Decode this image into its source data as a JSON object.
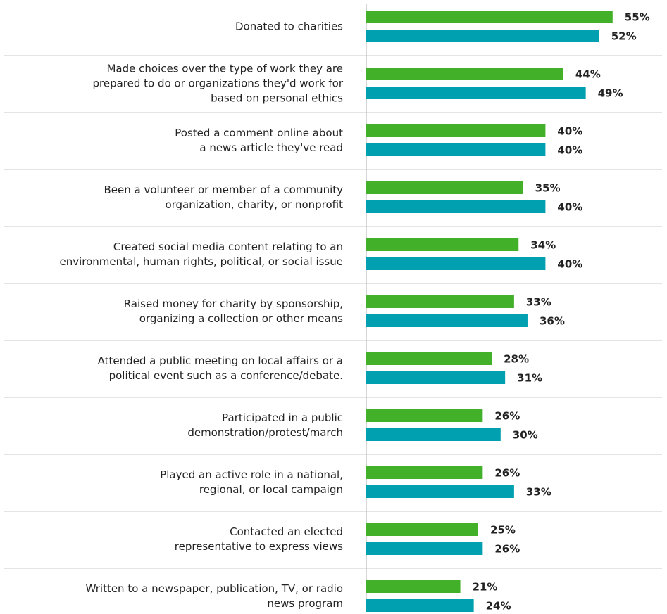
{
  "chart_data": {
    "type": "bar",
    "orientation": "horizontal",
    "categories": [
      [
        "Donated to charities"
      ],
      [
        "Made choices over the type of work they are",
        "prepared to do or organizations they'd work for",
        "based on personal ethics"
      ],
      [
        "Posted a comment online about",
        "a news article they've read"
      ],
      [
        "Been a volunteer or member of a community",
        "organization, charity, or nonprofit"
      ],
      [
        "Created social media content relating to an",
        "environmental, human rights, political, or social issue"
      ],
      [
        "Raised money for charity by sponsorship,",
        "organizing a collection or other means"
      ],
      [
        "Attended a public meeting on local affairs or a",
        "political event such as a conference/debate."
      ],
      [
        "Participated in a public",
        "demonstration/protest/march"
      ],
      [
        "Played an active role in a national,",
        "regional, or local campaign"
      ],
      [
        "Contacted an elected",
        "representative to express views"
      ],
      [
        "Written to a newspaper, publication, TV, or radio",
        "news program"
      ]
    ],
    "series": [
      {
        "color": "#43b02a",
        "values": [
          55,
          44,
          40,
          35,
          34,
          33,
          28,
          26,
          26,
          25,
          21
        ],
        "value_labels": [
          "55%",
          "44%",
          "40%",
          "35%",
          "34%",
          "33%",
          "28%",
          "26%",
          "26%",
          "25%",
          "21%"
        ]
      },
      {
        "color": "#00a0b0",
        "values": [
          52,
          49,
          40,
          40,
          40,
          36,
          31,
          30,
          33,
          26,
          24
        ],
        "value_labels": [
          "52%",
          "49%",
          "40%",
          "40%",
          "40%",
          "36%",
          "31%",
          "30%",
          "33%",
          "26%",
          "24%"
        ]
      }
    ],
    "xlim": [
      0,
      60
    ]
  }
}
